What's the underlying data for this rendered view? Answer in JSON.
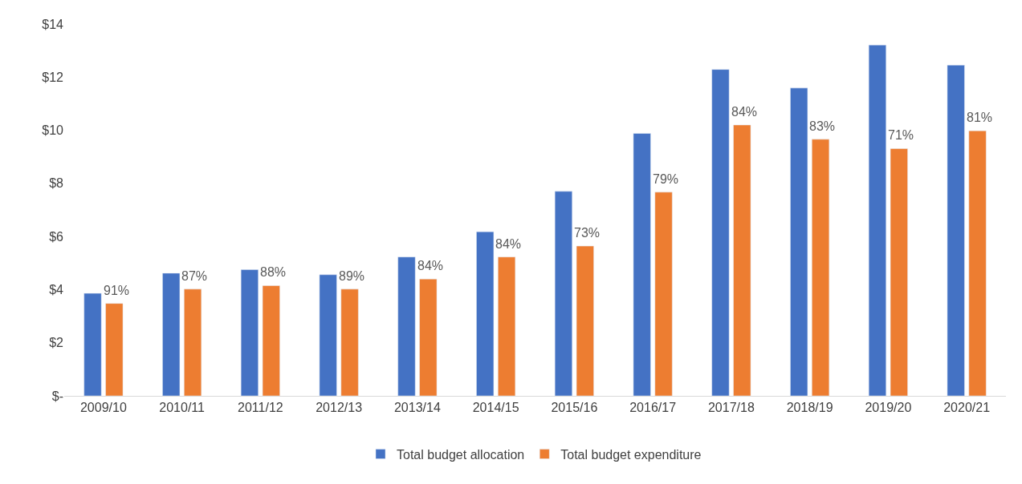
{
  "chart_data": {
    "type": "bar",
    "categories": [
      "2009/10",
      "2010/11",
      "2011/12",
      "2012/13",
      "2013/14",
      "2014/15",
      "2015/16",
      "2016/17",
      "2017/18",
      "2018/19",
      "2019/20",
      "2020/21"
    ],
    "series": [
      {
        "name": "Total budget allocation",
        "color": "#4472c4",
        "values": [
          3.86,
          4.62,
          4.75,
          4.56,
          5.23,
          6.18,
          7.7,
          9.88,
          12.29,
          11.59,
          13.21,
          12.45
        ]
      },
      {
        "name": "Total budget expenditure",
        "color": "#ed7d31",
        "values": [
          3.48,
          4.02,
          4.15,
          4.02,
          4.4,
          5.23,
          5.64,
          7.67,
          10.2,
          9.66,
          9.31,
          9.98
        ]
      }
    ],
    "annotations": [
      {
        "text": "91%",
        "x": "2009/10",
        "y": 3.48
      },
      {
        "text": "87%",
        "x": "2010/11",
        "y": 4.02
      },
      {
        "text": "88%",
        "x": "2011/12",
        "y": 4.15
      },
      {
        "text": "89%",
        "x": "2012/13",
        "y": 4.02
      },
      {
        "text": "84%",
        "x": "2013/14",
        "y": 4.4
      },
      {
        "text": "84%",
        "x": "2014/15",
        "y": 5.23
      },
      {
        "text": "73%",
        "x": "2015/16",
        "y": 5.64
      },
      {
        "text": "79%",
        "x": "2016/17",
        "y": 7.67
      },
      {
        "text": "84%",
        "x": "2017/18",
        "y": 10.2
      },
      {
        "text": "83%",
        "x": "2018/19",
        "y": 9.66
      },
      {
        "text": "71%",
        "x": "2019/20",
        "y": 9.31
      },
      {
        "text": "81%",
        "x": "2020/21",
        "y": 9.98
      }
    ],
    "ylim": [
      0,
      14
    ],
    "yticks": [
      {
        "value": 0,
        "label": "$-"
      },
      {
        "value": 2,
        "label": "$2"
      },
      {
        "value": 4,
        "label": "$4"
      },
      {
        "value": 6,
        "label": "$6"
      },
      {
        "value": 8,
        "label": "$8"
      },
      {
        "value": 10,
        "label": "$10"
      },
      {
        "value": 12,
        "label": "$12"
      },
      {
        "value": 14,
        "label": "$14"
      }
    ],
    "grid": false,
    "legend": "bottom"
  }
}
